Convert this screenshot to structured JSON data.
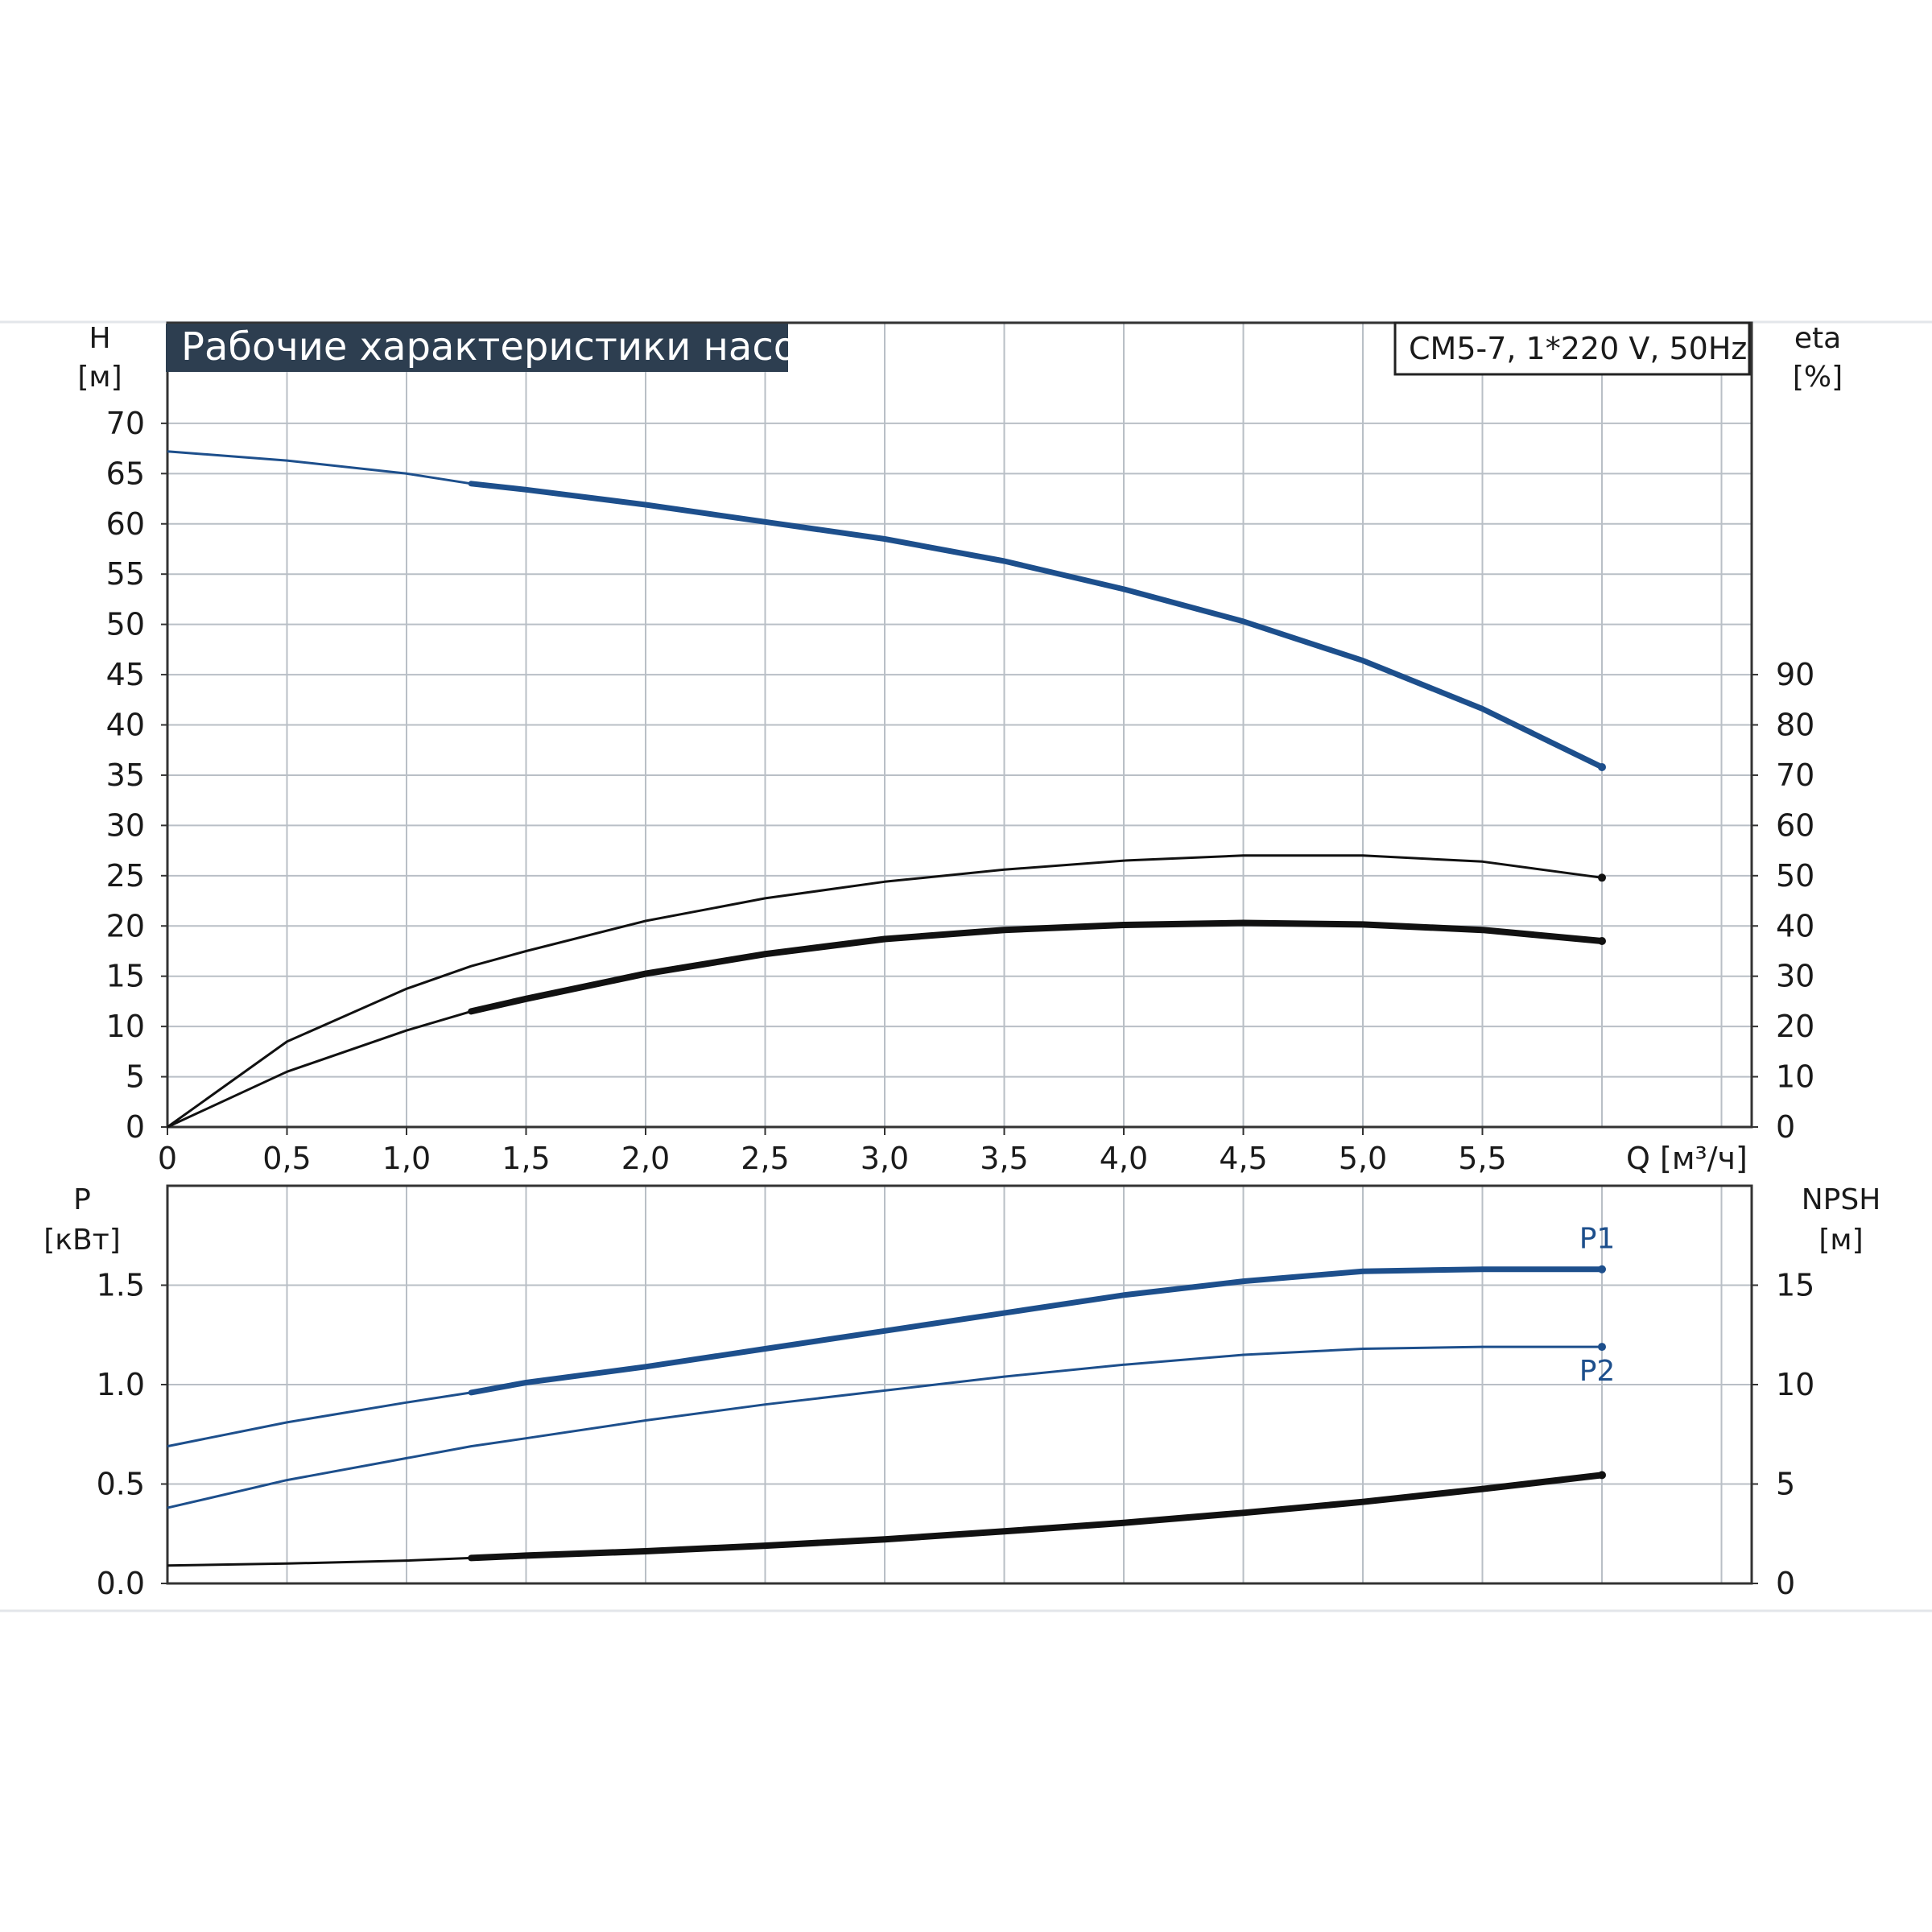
{
  "header": {
    "title": "Рабочие характеристики насоса",
    "model": "CM5-7, 1*220 V, 50Hz"
  },
  "colors": {
    "blue_curve": "#1d4f8c",
    "black_curve": "#111111",
    "grid": "#b9bfc6",
    "title_bg": "#2d3e50",
    "frame": "#333333"
  },
  "chart_data": [
    {
      "id": "top",
      "type": "line",
      "xlabel": "Q [м³/ч]",
      "x_ticks": [
        "0",
        "0,5",
        "1,0",
        "1,5",
        "2,0",
        "2,5",
        "3,0",
        "3,5",
        "4,0",
        "4,5",
        "5,0",
        "5,5"
      ],
      "xlim": [
        0,
        6.6
      ],
      "y_left": {
        "label_line1": "H",
        "label_line2": "[м]",
        "lim": [
          0,
          80
        ],
        "ticks": [
          "0",
          "5",
          "10",
          "15",
          "20",
          "25",
          "30",
          "35",
          "40",
          "45",
          "50",
          "55",
          "60",
          "65",
          "70"
        ]
      },
      "y_right": {
        "label_line1": "eta",
        "label_line2": "[%]",
        "lim": [
          0,
          160
        ],
        "ticks": [
          "0",
          "10",
          "20",
          "30",
          "40",
          "50",
          "60",
          "70",
          "80",
          "90"
        ]
      },
      "grid": true,
      "series": [
        {
          "key": "H",
          "axis": "left",
          "color": "blue",
          "op_start": 1.27,
          "x": [
            0,
            0.5,
            1.0,
            1.27,
            1.5,
            2.0,
            2.5,
            3.0,
            3.5,
            4.0,
            4.5,
            5.0,
            5.5,
            6.0
          ],
          "y": [
            67.2,
            66.3,
            65.0,
            64.0,
            63.4,
            61.9,
            60.2,
            58.5,
            56.3,
            53.5,
            50.3,
            46.4,
            41.6,
            35.8
          ]
        },
        {
          "key": "eta_thin",
          "axis": "right",
          "color": "black",
          "op_start": 99,
          "x": [
            0,
            0.5,
            1.0,
            1.27,
            1.5,
            2.0,
            2.5,
            3.0,
            3.5,
            4.0,
            4.5,
            5.0,
            5.5,
            6.0
          ],
          "y": [
            0,
            17.0,
            27.5,
            32.0,
            35.0,
            41.0,
            45.5,
            48.8,
            51.2,
            53.0,
            54.0,
            54.0,
            52.8,
            49.6
          ]
        },
        {
          "key": "eta_thick",
          "axis": "right",
          "color": "black",
          "op_start": 1.27,
          "x": [
            0,
            0.5,
            1.0,
            1.27,
            1.5,
            2.0,
            2.5,
            3.0,
            3.5,
            4.0,
            4.5,
            5.0,
            5.5,
            6.0
          ],
          "y": [
            0,
            11.0,
            19.2,
            23.0,
            25.5,
            30.5,
            34.4,
            37.4,
            39.2,
            40.2,
            40.6,
            40.3,
            39.2,
            37.0
          ]
        }
      ]
    },
    {
      "id": "bottom",
      "type": "line",
      "xlim": [
        0,
        6.6
      ],
      "y_left": {
        "label_line1": "P",
        "label_line2": "[кВт]",
        "lim": [
          0,
          2.0
        ],
        "ticks": [
          "0.0",
          "0.5",
          "1.0",
          "1.5"
        ]
      },
      "y_right": {
        "label_line1": "NPSH",
        "label_line2": "[м]",
        "lim": [
          0,
          20
        ],
        "ticks": [
          "0",
          "5",
          "10",
          "15"
        ]
      },
      "grid": true,
      "series": [
        {
          "key": "P1",
          "name": "P1",
          "axis": "left",
          "color": "blue",
          "op_start": 1.27,
          "x": [
            0,
            0.5,
            1.0,
            1.27,
            1.5,
            2.0,
            2.5,
            3.0,
            3.5,
            4.0,
            4.5,
            5.0,
            5.5,
            6.0
          ],
          "y": [
            0.69,
            0.81,
            0.91,
            0.96,
            1.01,
            1.09,
            1.18,
            1.27,
            1.36,
            1.45,
            1.52,
            1.57,
            1.58,
            1.58
          ]
        },
        {
          "key": "P2",
          "name": "P2",
          "axis": "left",
          "color": "blue",
          "op_start": 99,
          "x": [
            0,
            0.5,
            1.0,
            1.27,
            1.5,
            2.0,
            2.5,
            3.0,
            3.5,
            4.0,
            4.5,
            5.0,
            5.5,
            6.0
          ],
          "y": [
            0.38,
            0.52,
            0.63,
            0.69,
            0.73,
            0.82,
            0.9,
            0.97,
            1.04,
            1.1,
            1.15,
            1.18,
            1.19,
            1.19
          ]
        },
        {
          "key": "NPSH",
          "axis": "right",
          "color": "black",
          "op_start": 1.27,
          "x": [
            0,
            0.5,
            1.0,
            1.27,
            1.5,
            2.0,
            2.5,
            3.0,
            3.5,
            4.0,
            4.5,
            5.0,
            5.5,
            6.0
          ],
          "y": [
            0.9,
            1.0,
            1.15,
            1.28,
            1.4,
            1.62,
            1.9,
            2.22,
            2.62,
            3.05,
            3.55,
            4.1,
            4.75,
            5.45
          ]
        }
      ]
    }
  ]
}
